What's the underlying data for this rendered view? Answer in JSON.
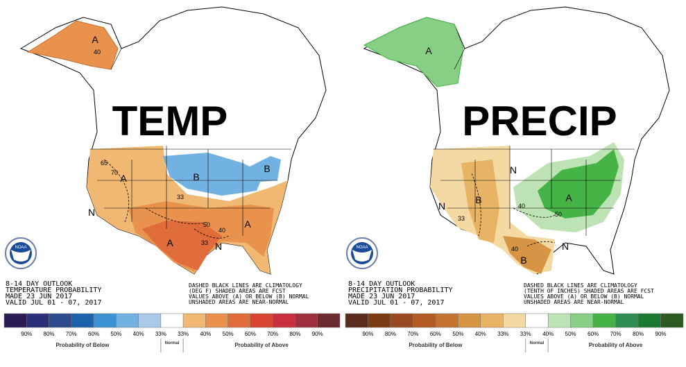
{
  "panels": [
    {
      "title": "TEMP",
      "logo": "NOAA",
      "outlook": [
        "8-14 DAY OUTLOOK",
        "TEMPERATURE PROBABILITY",
        "MADE  23 JUN 2017",
        "VALID  JUL 01 - 07, 2017"
      ],
      "notes": [
        "DASHED BLACK LINES ARE CLIMATOLOGY",
        "(DEG F) SHADED AREAS ARE FCST",
        "VALUES ABOVE (A) OR BELOW (B) NORMAL",
        "UNSHADED AREAS ARE NEAR-NORMAL"
      ],
      "map_labels": [
        "A",
        "40",
        "A",
        "65",
        "70",
        "B",
        "B",
        "A",
        "A",
        "N",
        "33",
        "50",
        "40",
        "33",
        "N"
      ],
      "legend": {
        "colors": [
          "#2a1b55",
          "#2c2e78",
          "#2e4a8e",
          "#1d63ab",
          "#3c92d2",
          "#72b2e2",
          "#a9c9e9",
          "#ffffff",
          "#f0b872",
          "#e8924d",
          "#e06c3b",
          "#d74530",
          "#c9303e",
          "#9e2f3c",
          "#6b2a2e"
        ],
        "ticks": [
          "90%",
          "80%",
          "70%",
          "60%",
          "50%",
          "40%",
          "33%",
          "33%",
          "40%",
          "50%",
          "60%",
          "70%",
          "80%",
          "90%"
        ],
        "normal": "Normal",
        "below": "Probability of Below",
        "above": "Probability of Above"
      }
    },
    {
      "title": "PRECIP",
      "logo": "NOAA",
      "outlook": [
        "8-14 DAY OUTLOOK",
        "PRECIPITATION PROBABILITY",
        "MADE  23 JUN 2017",
        "VALID  JUL 01 - 07, 2017"
      ],
      "notes": [
        "DASHED BLACK LINES ARE CLIMATOLOGY",
        "(TENTH OF INCHES) SHADED AREAS ARE FCST",
        "VALUES ABOVE (A) OR BELOW (B) NORMAL",
        "UNSHADED AREAS ARE NEAR-NORMAL"
      ],
      "map_labels": [
        "A",
        "N",
        "B",
        "N",
        "33",
        "A",
        "40",
        "50",
        "B",
        "40",
        "N"
      ],
      "legend": {
        "colors": [
          "#5a2a1c",
          "#7c3c12",
          "#9a4a22",
          "#b25c24",
          "#c47232",
          "#d69444",
          "#e6b464",
          "#f4daa2",
          "#ffffff",
          "#bde3b4",
          "#86cf84",
          "#46b346",
          "#2c8c52",
          "#1c7a32",
          "#2c5a22"
        ],
        "ticks": [
          "90%",
          "80%",
          "70%",
          "60%",
          "50%",
          "40%",
          "33%",
          "33%",
          "40%",
          "50%",
          "60%",
          "70%",
          "80%",
          "90%"
        ],
        "normal": "Normal",
        "below": "Probability of Below",
        "above": "Probability of Above"
      }
    }
  ]
}
